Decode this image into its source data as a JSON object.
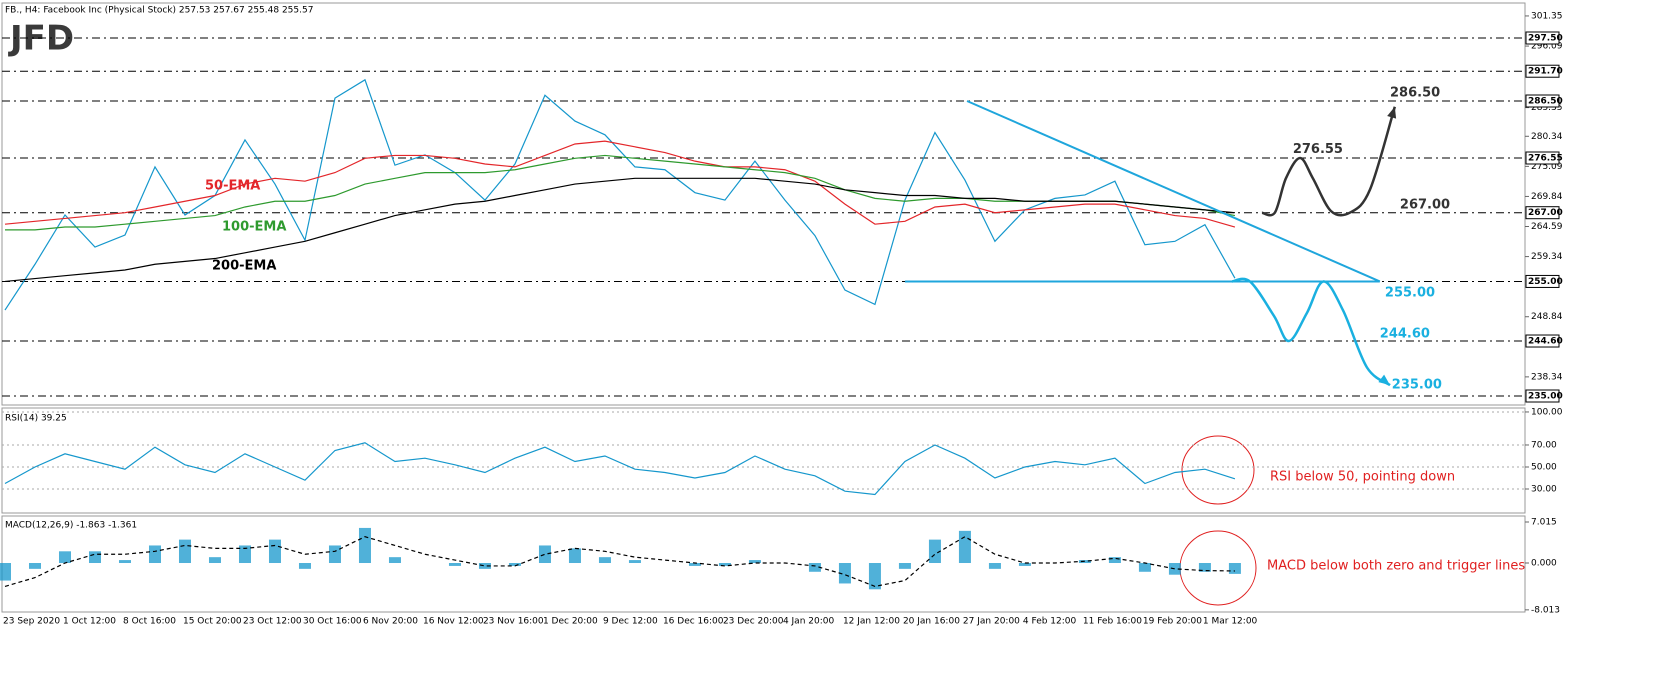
{
  "chart_data": [
    {
      "type": "line",
      "title": "JFD",
      "subtitle": "FB., H4: Facebook Inc (Physical Stock) 257.53 257.67 255.48 255.57",
      "categories": [
        "23 Sep 2020",
        null,
        "1 Oct 12:00",
        null,
        "8 Oct 16:00",
        null,
        "15 Oct 20:00",
        null,
        "23 Oct 12:00",
        null,
        "30 Oct 16:00",
        null,
        "6 Nov 20:00",
        null,
        "16 Nov 12:00",
        null,
        "23 Nov 16:00",
        null,
        "1 Dec 20:00",
        null,
        "9 Dec 12:00",
        null,
        "16 Dec 16:00",
        null,
        "23 Dec 20:00",
        null,
        "4 Jan 20:00",
        null,
        "12 Jan 12:00",
        null,
        "20 Jan 16:00",
        null,
        "27 Jan 20:00",
        null,
        "4 Feb 12:00",
        null,
        "11 Feb 16:00",
        null,
        "19 Feb 20:00",
        null,
        "1 Mar 12:00",
        null
      ],
      "xlim": [
        0,
        50.67
      ],
      "ylim": [
        233.43,
        303.26
      ],
      "yticks": [
        301.35,
        296.09,
        285.35,
        280.34,
        275.09,
        269.84,
        264.59,
        259.34,
        248.84,
        238.34
      ],
      "levels": [
        {
          "value": 297.5,
          "label": "297.50"
        },
        {
          "value": 291.7,
          "label": "291.70"
        },
        {
          "value": 286.5,
          "label": "286.50"
        },
        {
          "value": 276.55,
          "label": "276.55"
        },
        {
          "value": 267,
          "label": "267.00"
        },
        {
          "value": 255,
          "label": "255.00"
        },
        {
          "value": 244.6,
          "label": "244.60"
        },
        {
          "value": 235,
          "label": "235.00"
        }
      ],
      "series": [
        {
          "color": "#1597cc",
          "values": [
            250.0,
            258.0,
            266.6,
            261.0,
            263.1,
            275.0,
            266.6,
            270.0,
            279.7,
            272.0,
            262.2,
            287.0,
            290.2,
            275.3,
            277.1,
            274.0,
            269.2,
            275.5,
            287.5,
            283.0,
            280.6,
            275.0,
            274.5,
            270.5,
            269.2,
            276.0,
            269.2,
            263.0,
            253.5,
            251.0,
            269.2,
            281.0,
            272.7,
            262.0,
            267.5,
            269.5,
            270.1,
            272.5,
            261.4,
            262.0,
            264.9,
            255.57
          ]
        },
        {
          "name": "50-EMA",
          "color": "#e3262a",
          "values": [
            265,
            265.5,
            266,
            266.5,
            267,
            268,
            269,
            270,
            272,
            273,
            272.5,
            274,
            276.5,
            277,
            277,
            276.5,
            275.5,
            275,
            277,
            279,
            279.5,
            278.5,
            277.5,
            276,
            275,
            275,
            274.5,
            272.5,
            268.5,
            265,
            265.5,
            268,
            268.5,
            267,
            267.5,
            268,
            268.5,
            268.5,
            267.5,
            266.5,
            266,
            264.5
          ]
        },
        {
          "name": "100-EMA",
          "color": "#2e9a2e",
          "values": [
            264,
            264,
            264.5,
            264.5,
            265,
            265.5,
            266,
            266.5,
            268,
            269,
            269,
            270,
            272,
            273,
            274,
            274,
            274,
            274.5,
            275.5,
            276.5,
            277,
            276.5,
            276,
            275.5,
            275,
            274.5,
            274,
            273,
            271,
            269.5,
            269,
            269.5,
            269.5,
            269,
            269,
            269,
            269,
            269,
            268.5,
            268,
            267.5,
            266.5
          ]
        },
        {
          "name": "200-EMA",
          "color": "#000000",
          "values": [
            255,
            255.5,
            256,
            256.5,
            257,
            258,
            258.5,
            259,
            260,
            261,
            262,
            263.5,
            265,
            266.5,
            267.5,
            268.5,
            269,
            270,
            271,
            272,
            272.5,
            273,
            273,
            273,
            273,
            273,
            272.5,
            272,
            271,
            270.5,
            270,
            270,
            269.5,
            269.5,
            269,
            269,
            269,
            269,
            268.5,
            268,
            267.5,
            267
          ]
        }
      ],
      "trendlines": [
        {
          "color": "#1fa6dc",
          "x": [
            32.07,
            45.83
          ],
          "y": [
            286.5,
            255
          ]
        },
        {
          "color": "#1fa6dc",
          "x": [
            30,
            45.83
          ],
          "y": [
            255,
            255
          ]
        }
      ],
      "projections": [
        {
          "color": "#333333",
          "x": [
            41.9,
            42.33,
            42.7,
            43.17,
            43.6,
            44.2,
            44.83,
            45.5,
            46.33
          ],
          "y": [
            267,
            267,
            273,
            276.55,
            273,
            267.3,
            267,
            271,
            285.5
          ]
        },
        {
          "color": "#1ab0e0",
          "x": [
            40.9,
            41.5,
            42.3,
            42.8,
            43.4,
            43.95,
            44.6,
            45.4,
            46.17
          ],
          "y": [
            255,
            255,
            249,
            244.6,
            249.5,
            255,
            250,
            240,
            236.9
          ]
        }
      ],
      "annotations": [
        {
          "text": "286.50",
          "x": 46.17,
          "y": 287.9,
          "color": "#333333"
        },
        {
          "text": "276.55",
          "x": 42.93,
          "y": 278.0,
          "color": "#333333"
        },
        {
          "text": "267.00",
          "x": 46.5,
          "y": 268.35,
          "color": "#333333"
        },
        {
          "text": "255.00",
          "x": 46.0,
          "y": 253.0,
          "color": "#1ab0e0"
        },
        {
          "text": "244.60",
          "x": 45.83,
          "y": 245.8,
          "color": "#1ab0e0"
        },
        {
          "text": "235.00",
          "x": 46.23,
          "y": 236.9,
          "color": "#1ab0e0"
        }
      ]
    },
    {
      "type": "line",
      "title": "RSI(14) 39.25",
      "ylim": [
        8.2,
        103.6
      ],
      "yticks": [
        {
          "value": 100,
          "label": "100.00"
        },
        {
          "value": 70,
          "label": "70.00"
        },
        {
          "value": 50,
          "label": "50.00"
        },
        {
          "value": 30,
          "label": "30.00"
        }
      ],
      "grid": true,
      "series": [
        {
          "color": "#1597cc",
          "values": [
            35,
            50,
            62,
            55,
            48,
            68,
            52,
            45,
            62,
            50,
            38,
            65,
            72,
            55,
            58,
            52,
            45,
            58,
            68,
            55,
            60,
            48,
            45,
            40,
            45,
            60,
            48,
            42,
            28,
            25,
            55,
            70,
            58,
            40,
            50,
            55,
            52,
            58,
            35,
            45,
            48,
            39.25
          ]
        }
      ],
      "annotation": "RSI below 50, pointing down"
    },
    {
      "type": "macd",
      "title": "MACD(12,26,9) -1.863 -1.361",
      "ylim": [
        -8.38,
        8.04
      ],
      "yticks": [
        7.015,
        {
          "value": 0,
          "label": "0.000"
        },
        -8.013
      ],
      "series": [
        {
          "color": "#1597cc",
          "values": [
            -3,
            -1,
            2,
            2,
            0.5,
            3,
            4,
            1,
            3,
            4,
            -1,
            3,
            6,
            1,
            0,
            -0.5,
            -1,
            -0.5,
            3,
            2.5,
            1,
            0.5,
            0,
            -0.5,
            -0.5,
            0.5,
            0,
            -1.5,
            -3.5,
            -4.5,
            -1,
            4,
            5.5,
            -1,
            -0.5,
            0,
            0.5,
            1,
            -1.5,
            -2,
            -1.5,
            -1.863
          ]
        },
        {
          "color": "#000000",
          "values": [
            -4,
            -2.5,
            0,
            1.5,
            1.5,
            2,
            3,
            2.5,
            2.5,
            3,
            1.5,
            2,
            4.5,
            3,
            1.5,
            0.5,
            -0.5,
            -0.5,
            1.5,
            2.5,
            2,
            1,
            0.5,
            0,
            -0.5,
            0,
            0,
            -0.5,
            -2,
            -4,
            -3,
            1.5,
            4.5,
            1.5,
            0,
            0,
            0.3,
            0.8,
            0,
            -1,
            -1.3,
            -1.361
          ]
        }
      ],
      "annotation": "MACD below both zero and trigger lines"
    }
  ]
}
